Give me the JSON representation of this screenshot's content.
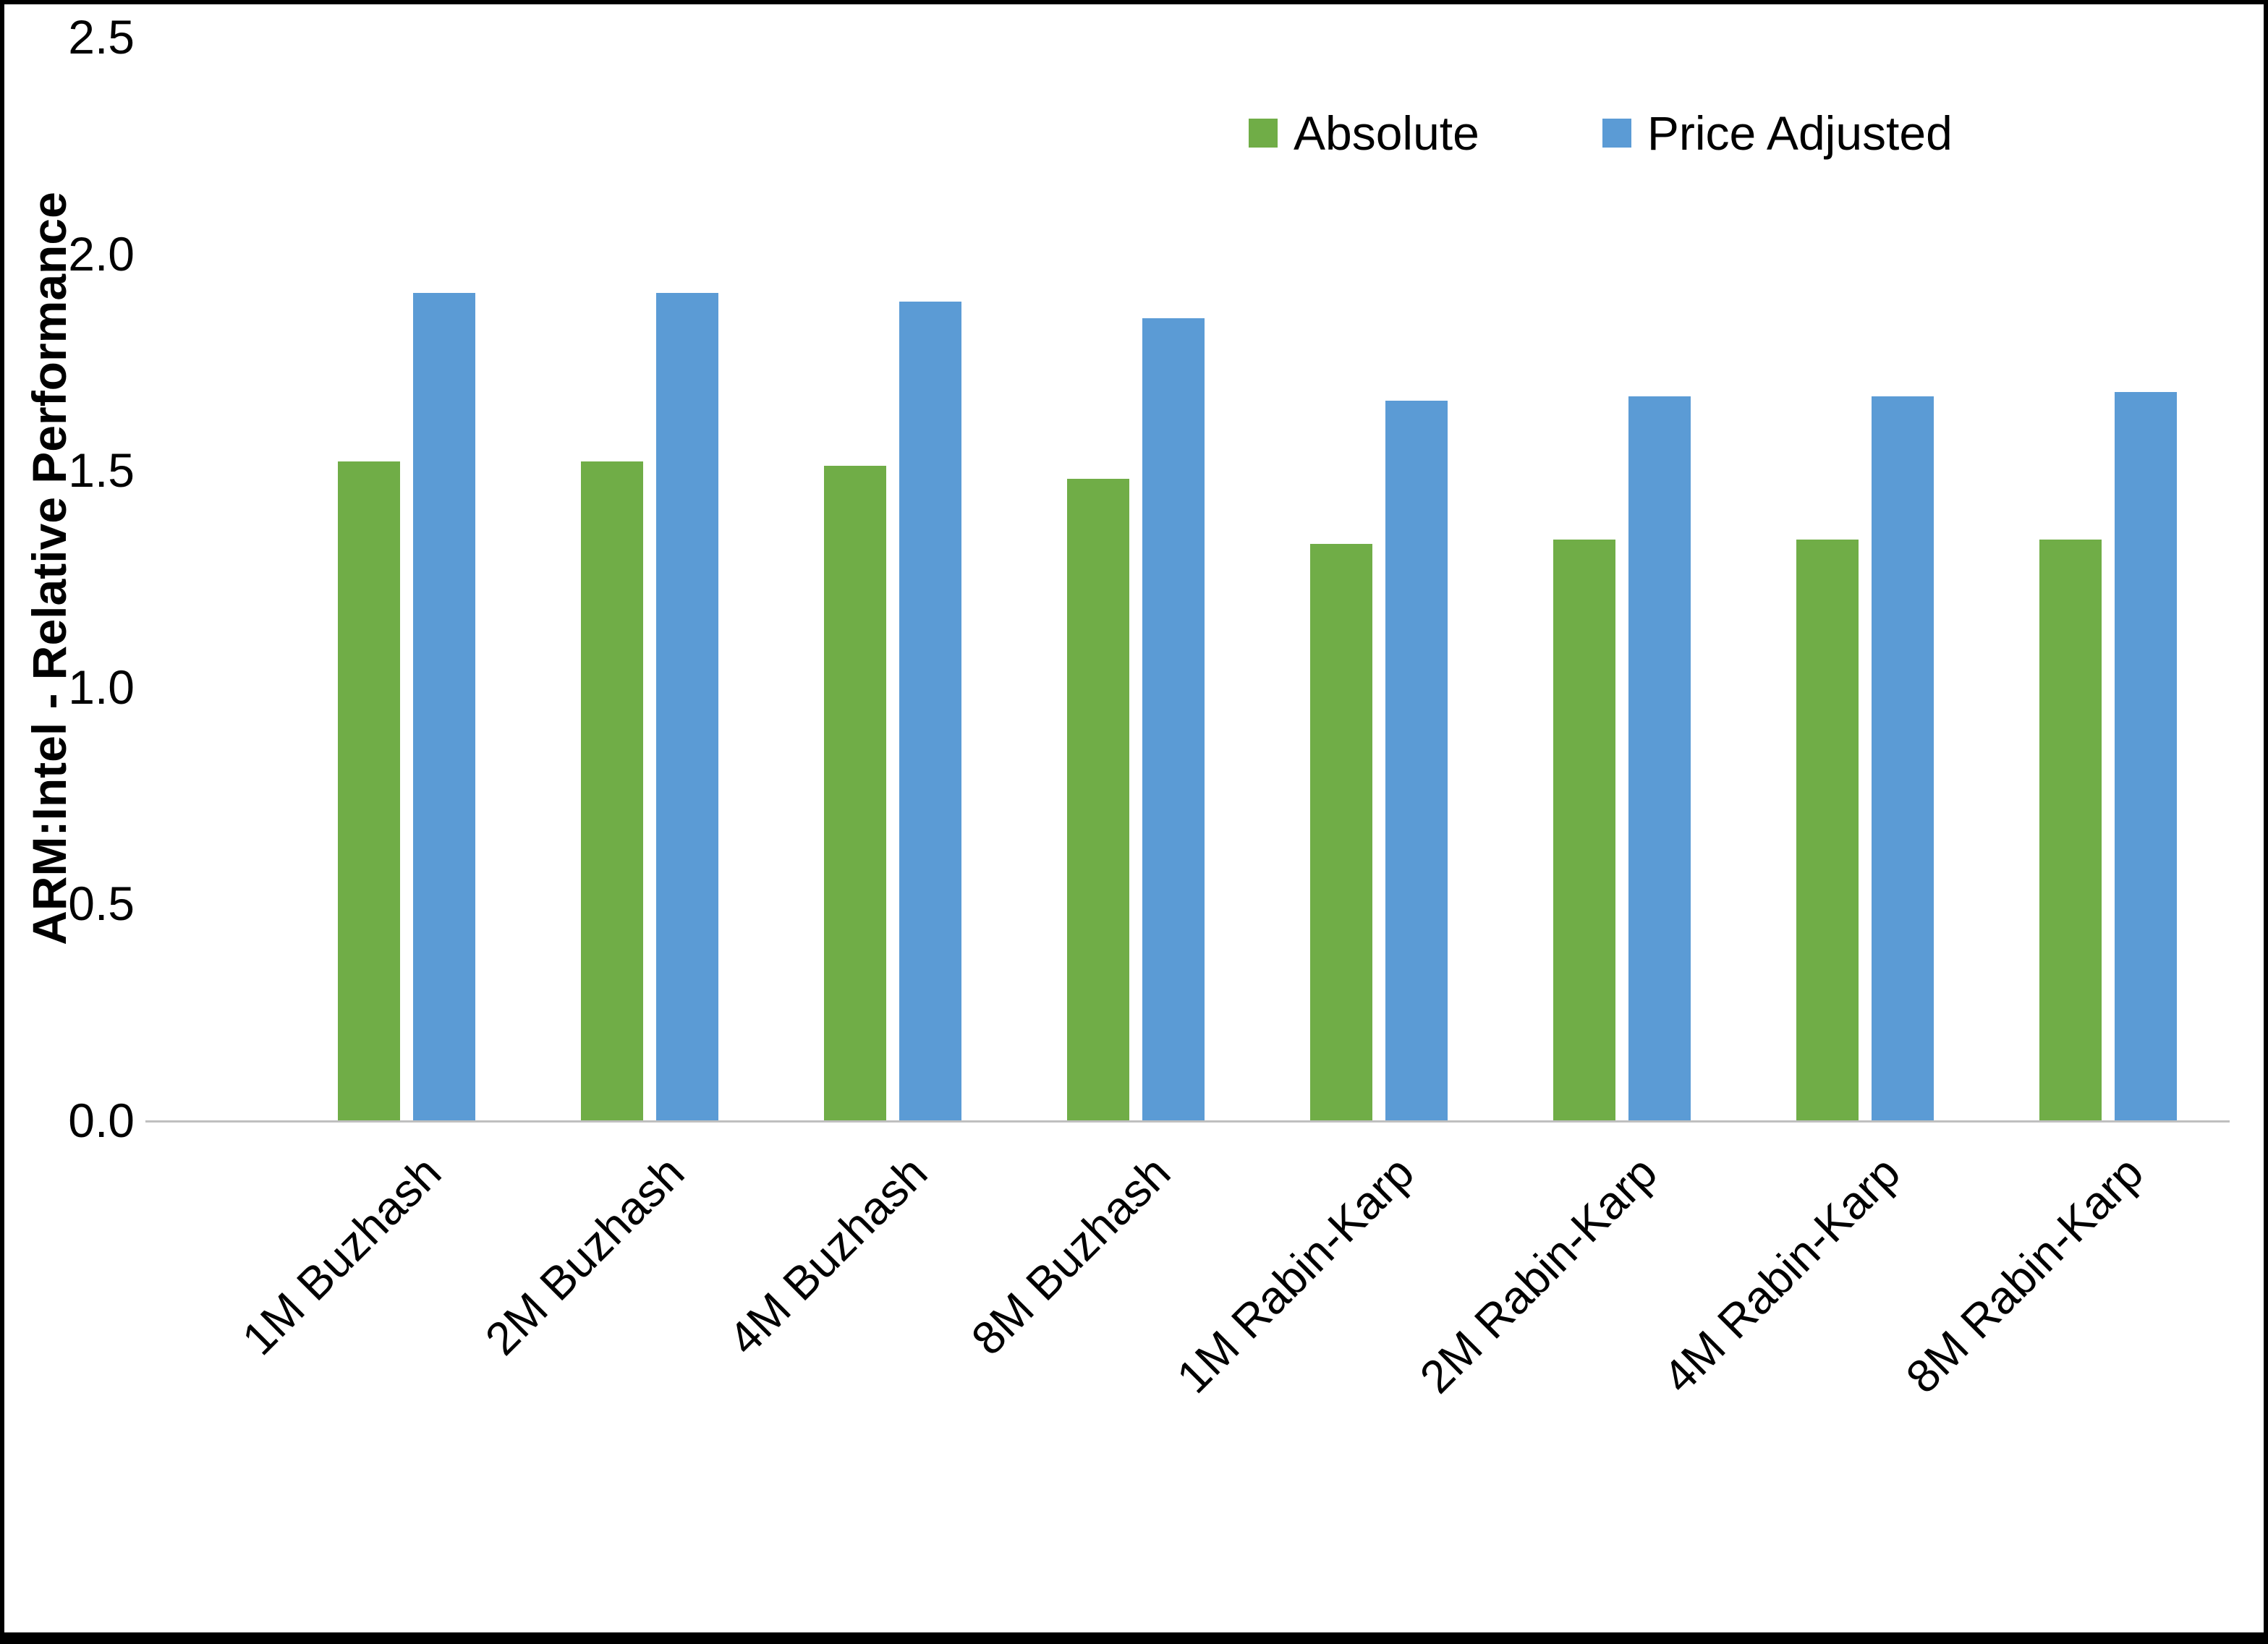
{
  "chart_data": {
    "type": "bar",
    "title": "",
    "xlabel": "",
    "ylabel": "ARM:Intel - Relative Performance",
    "ylim": [
      0,
      2.5
    ],
    "ytick_labels": [
      "0.0",
      "0.5",
      "1.0",
      "1.5",
      "2.0",
      "2.5"
    ],
    "categories": [
      "1M Buzhash",
      "2M Buzhash",
      "4M Buzhash",
      "8M Buzhash",
      "1M Rabin-Karp",
      "2M Rabin-Karp",
      "4M Rabin-Karp",
      "8M Rabin-Karp"
    ],
    "series": [
      {
        "name": "Absolute",
        "color": "#70AD47",
        "values": [
          1.52,
          1.52,
          1.51,
          1.48,
          1.33,
          1.34,
          1.34,
          1.34
        ]
      },
      {
        "name": "Price Adjusted",
        "color": "#5B9BD5",
        "values": [
          1.91,
          1.91,
          1.89,
          1.85,
          1.66,
          1.67,
          1.67,
          1.68
        ]
      }
    ],
    "legend_position": "top-right",
    "grid": false,
    "colors": {
      "axis_line": "#BFBFBF",
      "text": "#000000",
      "background": "#FFFFFF",
      "border": "#000000"
    }
  }
}
